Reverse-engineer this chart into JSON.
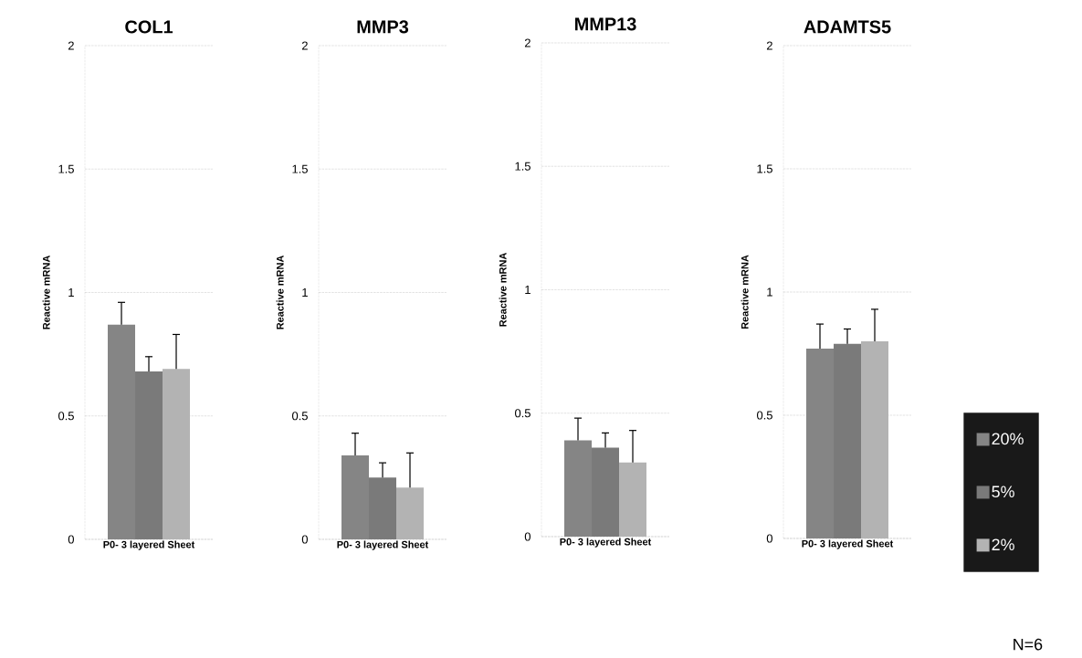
{
  "chart_data": [
    {
      "type": "bar",
      "title": "COL1",
      "ylabel": "Reactive mRNA",
      "categories": [
        "P0- 3 layered Sheet"
      ],
      "ylim": [
        0,
        2
      ],
      "yticks": [
        0,
        0.5,
        1,
        1.5,
        2
      ],
      "grid": "y",
      "series": [
        {
          "color": "#858585",
          "values": [
            0.87
          ],
          "errors": [
            [
              0.87,
              0.96
            ]
          ]
        },
        {
          "color": "#7a7a7a",
          "values": [
            0.68
          ],
          "errors": [
            [
              0.68,
              0.74
            ]
          ]
        },
        {
          "color": "#b3b3b3",
          "values": [
            0.69
          ],
          "errors": [
            [
              0.69,
              0.83
            ]
          ]
        }
      ]
    },
    {
      "type": "bar",
      "title": "MMP3",
      "ylabel": "Reactive mRNA",
      "categories": [
        "P0- 3 layered Sheet"
      ],
      "ylim": [
        0,
        2
      ],
      "yticks": [
        0,
        0.5,
        1,
        1.5,
        2
      ],
      "grid": "y",
      "series": [
        {
          "color": "#858585",
          "values": [
            0.34
          ],
          "errors": [
            [
              0.34,
              0.43
            ]
          ]
        },
        {
          "color": "#7a7a7a",
          "values": [
            0.25
          ],
          "errors": [
            [
              0.25,
              0.31
            ]
          ]
        },
        {
          "color": "#b3b3b3",
          "values": [
            0.21
          ],
          "errors": [
            [
              0.21,
              0.35
            ]
          ]
        }
      ]
    },
    {
      "type": "bar",
      "title": "MMP13",
      "ylabel": "Reactive mRNA",
      "categories": [
        "P0- 3 layered Sheet"
      ],
      "ylim": [
        0,
        2
      ],
      "yticks": [
        0,
        0.5,
        1,
        1.5,
        2
      ],
      "grid": "y",
      "series": [
        {
          "color": "#858585",
          "values": [
            0.39
          ],
          "errors": [
            [
              0.39,
              0.48
            ]
          ]
        },
        {
          "color": "#7a7a7a",
          "values": [
            0.36
          ],
          "errors": [
            [
              0.36,
              0.42
            ]
          ]
        },
        {
          "color": "#b3b3b3",
          "values": [
            0.3
          ],
          "errors": [
            [
              0.3,
              0.43
            ]
          ]
        }
      ]
    },
    {
      "type": "bar",
      "title": "ADAMTS5",
      "ylabel": "Reactive mRNA",
      "categories": [
        "P0- 3 layered Sheet"
      ],
      "ylim": [
        0,
        2
      ],
      "yticks": [
        0,
        0.5,
        1,
        1.5,
        2
      ],
      "grid": "y",
      "legend": "right",
      "annotations": [
        "N=6"
      ],
      "series": [
        {
          "name": "20%",
          "color": "#858585",
          "values": [
            0.77
          ],
          "errors": [
            [
              0.77,
              0.87
            ]
          ]
        },
        {
          "name": "5%",
          "color": "#7a7a7a",
          "values": [
            0.79
          ],
          "errors": [
            [
              0.79,
              0.85
            ]
          ]
        },
        {
          "name": "2%",
          "color": "#b3b3b3",
          "values": [
            0.8
          ],
          "errors": [
            [
              0.8,
              0.93
            ]
          ]
        }
      ]
    }
  ]
}
